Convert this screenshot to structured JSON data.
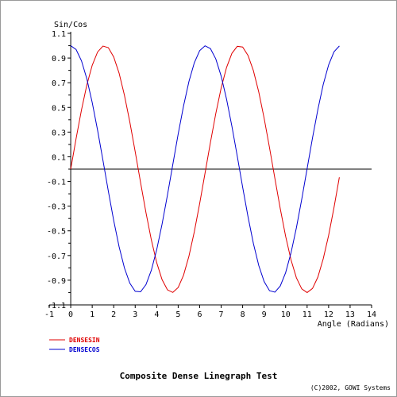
{
  "chart_data": {
    "type": "line",
    "title": "Composite Dense Linegraph Test",
    "ylabel": "Sin/Cos",
    "xlabel": "Angle (Radians)",
    "copyright": "(C)2002, GOWI Systems",
    "xlim": [
      -1,
      14
    ],
    "ylim": [
      -1.1,
      1.1
    ],
    "x_ticks": [
      -1,
      0,
      1,
      2,
      3,
      4,
      5,
      6,
      7,
      8,
      9,
      10,
      11,
      12,
      13,
      14
    ],
    "y_ticks": [
      1.1,
      0.9,
      0.7,
      0.5,
      0.3,
      0.1,
      -0.1,
      -0.3,
      -0.5,
      -0.7,
      -0.9,
      -1.1
    ],
    "y_tick_labels": [
      "1.1",
      "0.9",
      "0.7",
      "0.5",
      "0.3",
      "0.1",
      "-0.1",
      "-0.3",
      "-0.5",
      "-0.7",
      "-0.9",
      "-1.1"
    ],
    "grid": false,
    "legend_position": "bottom-left",
    "series": [
      {
        "name": "DENSESIN",
        "color": "#e00000",
        "x": [
          0,
          0.25,
          0.5,
          0.75,
          1.0,
          1.25,
          1.5,
          1.75,
          2.0,
          2.25,
          2.5,
          2.75,
          3.0,
          3.25,
          3.5,
          3.75,
          4.0,
          4.25,
          4.5,
          4.75,
          5.0,
          5.25,
          5.5,
          5.75,
          6.0,
          6.25,
          6.5,
          6.75,
          7.0,
          7.25,
          7.5,
          7.75,
          8.0,
          8.25,
          8.5,
          8.75,
          9.0,
          9.25,
          9.5,
          9.75,
          10.0,
          10.25,
          10.5,
          10.75,
          11.0,
          11.25,
          11.5,
          11.75,
          12.0,
          12.25,
          12.5
        ],
        "values": [
          0.0,
          0.247,
          0.479,
          0.682,
          0.841,
          0.949,
          0.997,
          0.984,
          0.909,
          0.778,
          0.598,
          0.382,
          0.141,
          -0.108,
          -0.351,
          -0.572,
          -0.757,
          -0.895,
          -0.978,
          -0.999,
          -0.959,
          -0.859,
          -0.706,
          -0.508,
          -0.279,
          -0.033,
          0.215,
          0.45,
          0.657,
          0.823,
          0.938,
          0.995,
          0.989,
          0.921,
          0.798,
          0.625,
          0.412,
          0.174,
          -0.075,
          -0.32,
          -0.544,
          -0.735,
          -0.88,
          -0.97,
          -1.0,
          -0.967,
          -0.875,
          -0.726,
          -0.537,
          -0.312,
          -0.066
        ]
      },
      {
        "name": "DENSECOS",
        "color": "#0000d0",
        "x": [
          0,
          0.25,
          0.5,
          0.75,
          1.0,
          1.25,
          1.5,
          1.75,
          2.0,
          2.25,
          2.5,
          2.75,
          3.0,
          3.25,
          3.5,
          3.75,
          4.0,
          4.25,
          4.5,
          4.75,
          5.0,
          5.25,
          5.5,
          5.75,
          6.0,
          6.25,
          6.5,
          6.75,
          7.0,
          7.25,
          7.5,
          7.75,
          8.0,
          8.25,
          8.5,
          8.75,
          9.0,
          9.25,
          9.5,
          9.75,
          10.0,
          10.25,
          10.5,
          10.75,
          11.0,
          11.25,
          11.5,
          11.75,
          12.0,
          12.25,
          12.5
        ],
        "values": [
          1.0,
          0.969,
          0.878,
          0.732,
          0.54,
          0.315,
          0.071,
          -0.178,
          -0.416,
          -0.628,
          -0.801,
          -0.924,
          -0.99,
          -0.994,
          -0.936,
          -0.82,
          -0.654,
          -0.446,
          -0.211,
          0.037,
          0.284,
          0.512,
          0.709,
          0.861,
          0.96,
          0.999,
          0.977,
          0.893,
          0.754,
          0.568,
          0.347,
          0.105,
          -0.146,
          -0.386,
          -0.602,
          -0.781,
          -0.911,
          -0.985,
          -0.997,
          -0.947,
          -0.839,
          -0.679,
          -0.476,
          -0.244,
          0.004,
          0.252,
          0.483,
          0.686,
          0.844,
          0.95,
          0.998
        ]
      }
    ]
  }
}
